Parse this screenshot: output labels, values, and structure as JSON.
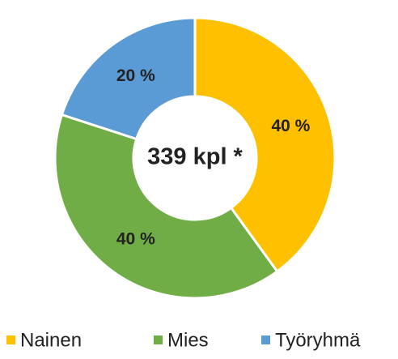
{
  "chart_data": {
    "type": "donut",
    "categories": [
      "Nainen",
      "Mies",
      "Työryhmä"
    ],
    "values": [
      40,
      40,
      20
    ],
    "value_labels": [
      "40 %",
      "40 %",
      "20 %"
    ],
    "colors": [
      "#ffc000",
      "#70ad47",
      "#5b9bd5"
    ],
    "center_label": "339 kpl *",
    "legend": "bottom"
  }
}
